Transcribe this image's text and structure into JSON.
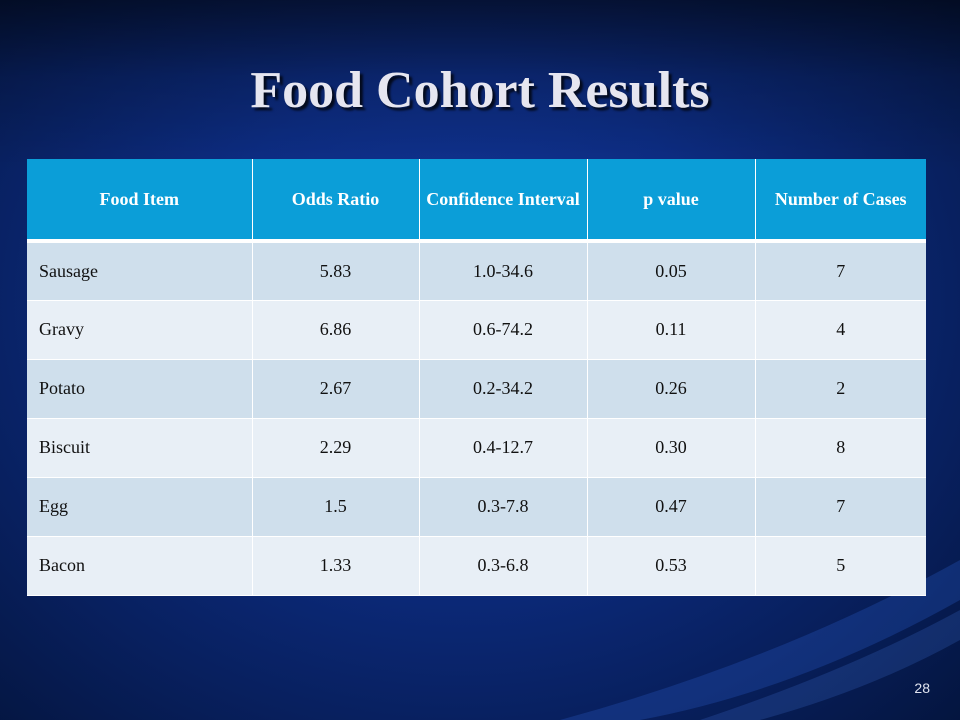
{
  "slide": {
    "title": "Food Cohort Results",
    "page_number": "28"
  },
  "table": {
    "headers": [
      "Food Item",
      "Odds Ratio",
      "Confidence Interval",
      "p value",
      "Number of Cases"
    ],
    "rows": [
      [
        "Sausage",
        "5.83",
        "1.0-34.6",
        "0.05",
        "7"
      ],
      [
        "Gravy",
        "6.86",
        "0.6-74.2",
        "0.11",
        "4"
      ],
      [
        "Potato",
        "2.67",
        "0.2-34.2",
        "0.26",
        "2"
      ],
      [
        "Biscuit",
        "2.29",
        "0.4-12.7",
        "0.30",
        "8"
      ],
      [
        "Egg",
        "1.5",
        "0.3-7.8",
        "0.47",
        "7"
      ],
      [
        "Bacon",
        "1.33",
        "0.3-6.8",
        "0.53",
        "5"
      ]
    ]
  },
  "colors": {
    "background": "#0d2d84",
    "header_fill": "#0b9ed8",
    "row_odd": "#cfdfec",
    "row_even": "#e8eff6",
    "title_text": "#e6e6f0"
  }
}
